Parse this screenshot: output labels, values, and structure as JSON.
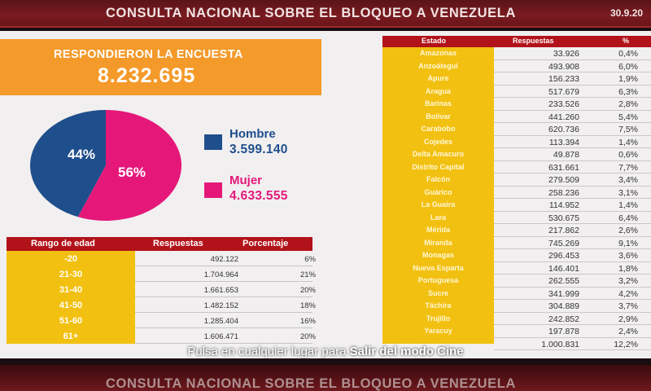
{
  "header": {
    "title": "CONSULTA NACIONAL SOBRE EL BLOQUEO A VENEZUELA",
    "date": "30.9.20"
  },
  "summary": {
    "label": "RESPONDIERON LA ENCUESTA",
    "total": "8.232.695"
  },
  "gender": {
    "hombre": {
      "label": "Hombre",
      "value": "3.599.140",
      "pct_label": "44%",
      "pct": 44,
      "color": "#1f4e8c"
    },
    "mujer": {
      "label": "Mujer",
      "value": "4.633.555",
      "pct_label": "56%",
      "pct": 56,
      "color": "#e5187a"
    }
  },
  "age_table": {
    "headers": [
      "Rango de edad",
      "Respuestas",
      "Porcentaje"
    ],
    "rows": [
      {
        "range": "-20",
        "responses": "492.122",
        "pct": "6%"
      },
      {
        "range": "21-30",
        "responses": "1.704.964",
        "pct": "21%"
      },
      {
        "range": "31-40",
        "responses": "1.661.653",
        "pct": "20%"
      },
      {
        "range": "41-50",
        "responses": "1.482.152",
        "pct": "18%"
      },
      {
        "range": "51-60",
        "responses": "1.285.404",
        "pct": "16%"
      },
      {
        "range": "61+",
        "responses": "1.606.471",
        "pct": "20%"
      }
    ]
  },
  "state_table": {
    "headers": [
      "Estado",
      "Respuestas",
      "%"
    ],
    "rows": [
      {
        "state": "Amazonas",
        "responses": "33.926",
        "pct": "0,4%"
      },
      {
        "state": "Anzoátegui",
        "responses": "493.908",
        "pct": "6,0%"
      },
      {
        "state": "Apure",
        "responses": "156.233",
        "pct": "1,9%"
      },
      {
        "state": "Aragua",
        "responses": "517.679",
        "pct": "6,3%"
      },
      {
        "state": "Barinas",
        "responses": "233.526",
        "pct": "2,8%"
      },
      {
        "state": "Bolívar",
        "responses": "441.260",
        "pct": "5,4%"
      },
      {
        "state": "Carabobo",
        "responses": "620.736",
        "pct": "7,5%"
      },
      {
        "state": "Cojedes",
        "responses": "113.394",
        "pct": "1,4%"
      },
      {
        "state": "Delta Amacuro",
        "responses": "49.878",
        "pct": "0,6%"
      },
      {
        "state": "Distrito Capital",
        "responses": "631.661",
        "pct": "7,7%"
      },
      {
        "state": "Falcón",
        "responses": "279.509",
        "pct": "3,4%"
      },
      {
        "state": "Guárico",
        "responses": "258.236",
        "pct": "3,1%"
      },
      {
        "state": "La Guaira",
        "responses": "114.952",
        "pct": "1,4%"
      },
      {
        "state": "Lara",
        "responses": "530.675",
        "pct": "6,4%"
      },
      {
        "state": "Mérida",
        "responses": "217.862",
        "pct": "2,6%"
      },
      {
        "state": "Miranda",
        "responses": "745.269",
        "pct": "9,1%"
      },
      {
        "state": "Monagas",
        "responses": "296.453",
        "pct": "3,6%"
      },
      {
        "state": "Nueva Esparta",
        "responses": "146.401",
        "pct": "1,8%"
      },
      {
        "state": "Portuguesa",
        "responses": "262.555",
        "pct": "3,2%"
      },
      {
        "state": "Sucre",
        "responses": "341.999",
        "pct": "4,2%"
      },
      {
        "state": "Táchira",
        "responses": "304.889",
        "pct": "3,7%"
      },
      {
        "state": "Trujillo",
        "responses": "242.852",
        "pct": "2,9%"
      },
      {
        "state": "Yaracuy",
        "responses": "197.878",
        "pct": "2,4%"
      },
      {
        "state": "",
        "responses": "1.000.831",
        "pct": "12,2%"
      }
    ]
  },
  "overlay": {
    "prefix": "Pulsa en cualquier lugar para ",
    "action": "Salir del modo Cine"
  },
  "colors": {
    "accent_red": "#b2121a",
    "gold": "#f2c010",
    "orange": "#f49a2a"
  }
}
